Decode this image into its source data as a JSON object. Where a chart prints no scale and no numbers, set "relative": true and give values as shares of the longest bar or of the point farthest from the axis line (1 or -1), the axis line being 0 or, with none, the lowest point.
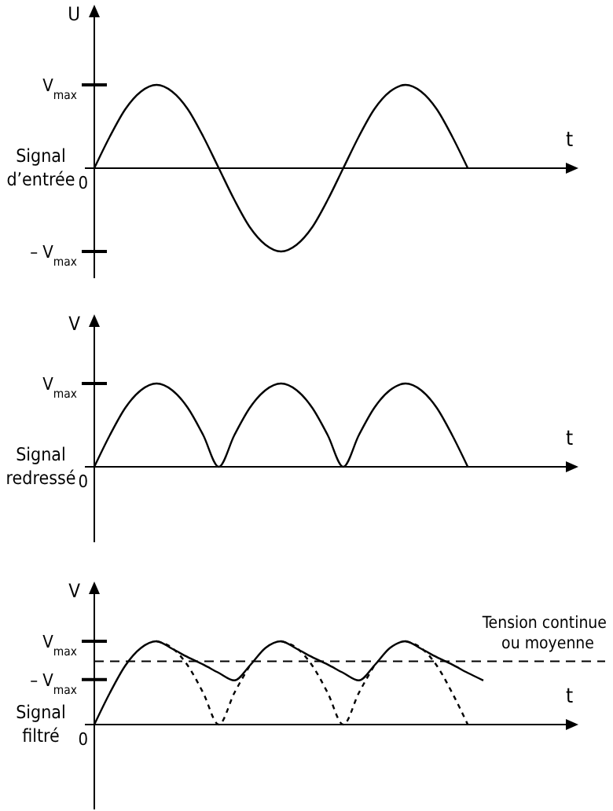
{
  "chart_data": [
    {
      "type": "line",
      "relative": true,
      "title": "Signal\nd’entrée",
      "xlabel": "t",
      "ylabel": "U",
      "categories": [
        null,
        null,
        null,
        null,
        null,
        null,
        null,
        null,
        null,
        null,
        null,
        null,
        null,
        null,
        null,
        null,
        null,
        null,
        null,
        null,
        null,
        null,
        null,
        null,
        null,
        null,
        null,
        null,
        null,
        null,
        null
      ],
      "annotations": [
        "0"
      ],
      "ref_lines": [
        {
          "axis": "y",
          "value": 1,
          "label": "V$_{max}$",
          "line_style": "solid",
          "color": "#000000"
        },
        {
          "axis": "y",
          "value": -1,
          "label": "– V$_{max}$",
          "line_style": "solid",
          "color": "#000000"
        }
      ],
      "series": [
        {
          "color": "#000000",
          "line_style": "solid",
          "values": [
            0,
            0.38,
            0.71,
            0.92,
            1,
            0.92,
            0.71,
            0.38,
            0,
            -0.38,
            -0.71,
            -0.92,
            -1,
            -0.92,
            -0.71,
            -0.38,
            0,
            0.38,
            0.71,
            0.92,
            1,
            0.92,
            0.71,
            0.38,
            0,
            null,
            null,
            null,
            null,
            null,
            null
          ]
        }
      ]
    },
    {
      "type": "line",
      "relative": true,
      "title": "Signal\nredressé",
      "xlabel": "t",
      "ylabel": "V",
      "categories": [
        null,
        null,
        null,
        null,
        null,
        null,
        null,
        null,
        null,
        null,
        null,
        null,
        null,
        null,
        null,
        null,
        null,
        null,
        null,
        null,
        null,
        null,
        null,
        null,
        null,
        null,
        null,
        null,
        null,
        null,
        null
      ],
      "annotations": [
        "0"
      ],
      "ref_lines": [
        {
          "axis": "y",
          "value": 1,
          "label": "V$_{max}$",
          "line_style": "solid",
          "color": "#000000"
        }
      ],
      "series": [
        {
          "color": "#000000",
          "line_style": "solid",
          "values": [
            0,
            0.38,
            0.71,
            0.92,
            1,
            0.92,
            0.71,
            0.38,
            0,
            0.38,
            0.71,
            0.92,
            1,
            0.92,
            0.71,
            0.38,
            0,
            0.38,
            0.71,
            0.92,
            1,
            0.92,
            0.71,
            0.38,
            0,
            null,
            null,
            null,
            null,
            null,
            null
          ]
        }
      ]
    },
    {
      "type": "line",
      "relative": true,
      "title": "Signal\nfiltré",
      "xlabel": "t",
      "ylabel": "V",
      "categories": [
        null,
        null,
        null,
        null,
        null,
        null,
        null,
        null,
        null,
        null,
        null,
        null,
        null,
        null,
        null,
        null,
        null,
        null,
        null,
        null,
        null,
        null,
        null,
        null,
        null,
        null,
        null,
        null,
        null,
        null,
        null
      ],
      "annotations": [
        "0"
      ],
      "ref_lines": [
        {
          "axis": "y",
          "value": 1,
          "label": "V$_{max}$",
          "line_style": "solid",
          "color": "#000000"
        },
        {
          "axis": "y",
          "value": 0.54,
          "label": "– V$_{max}$",
          "line_style": "solid",
          "color": "#000000"
        },
        {
          "axis": "y",
          "value": 0.76,
          "label": "Tension continue\nou moyenne",
          "line_style": "dashed",
          "color": "#000000"
        }
      ],
      "series": [
        {
          "color": "#000000",
          "line_style": "dashed",
          "values": [
            null,
            null,
            null,
            null,
            1,
            0.92,
            0.71,
            0.38,
            0,
            0.38,
            0.71,
            null,
            1,
            0.92,
            0.71,
            0.38,
            0,
            0.38,
            0.71,
            null,
            1,
            0.92,
            0.71,
            0.38,
            0,
            null,
            null,
            null,
            null,
            null,
            null
          ]
        },
        {
          "color": "#000000",
          "line_style": "solid",
          "values": [
            0,
            0.38,
            0.71,
            0.92,
            1,
            0.91,
            0.81,
            0.72,
            0.62,
            0.53,
            0.71,
            0.92,
            1,
            0.91,
            0.81,
            0.72,
            0.62,
            0.53,
            0.71,
            0.92,
            1,
            0.91,
            0.81,
            0.72,
            0.62,
            0.53,
            null,
            null,
            null,
            null,
            null
          ]
        }
      ]
    }
  ]
}
